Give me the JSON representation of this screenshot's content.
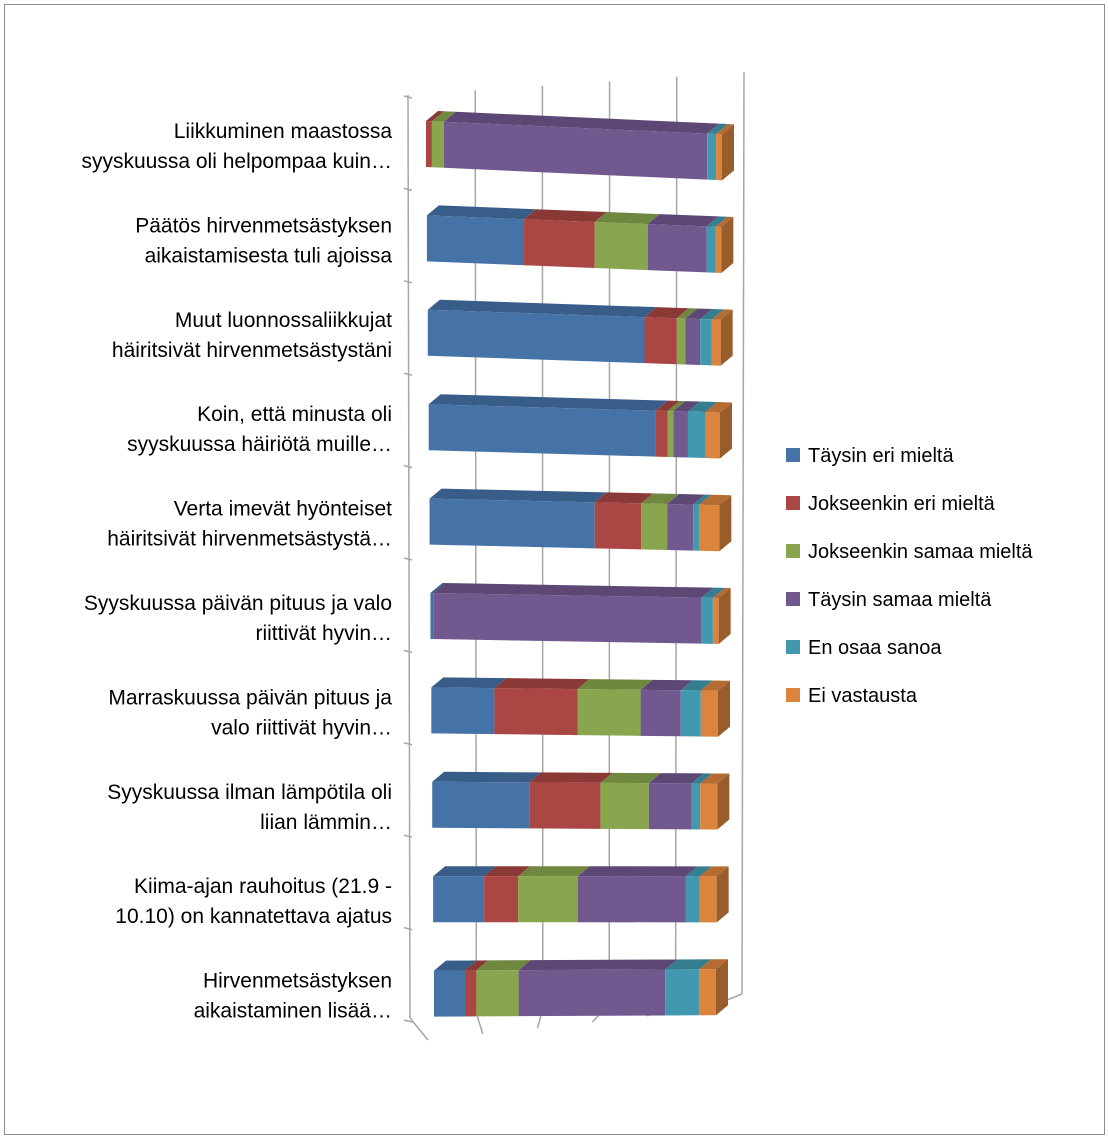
{
  "chart_data": {
    "type": "bar",
    "stacked": "percent",
    "orientation": "horizontal",
    "view": "3d",
    "categories": [
      [
        "Liikkuminen maastossa",
        "syyskuussa oli helpompaa kuin…"
      ],
      [
        "Päätös hirvenmetsästyksen",
        "aikaistamisesta tuli ajoissa"
      ],
      [
        "Muut luonnossaliikkujat",
        "häiritsivät hirvenmetsästystäni"
      ],
      [
        "Koin, että minusta oli",
        "syyskuussa häiriötä muille…"
      ],
      [
        "Verta imevät hyönteiset",
        "häiritsivät hirvenmetsästystä…"
      ],
      [
        "Syyskuussa päivän pituus ja valo",
        "riittivät hyvin…"
      ],
      [
        "Marraskuussa päivän pituus ja",
        "valo riittivät hyvin…"
      ],
      [
        "Syyskuussa ilman lämpötila oli",
        "liian lämmin…"
      ],
      [
        "Kiima-ajan rauhoitus (21.9 -",
        "10.10) on kannatettava ajatus"
      ],
      [
        "Hirvenmetsästyksen",
        "aikaistaminen lisää…"
      ]
    ],
    "series": [
      {
        "name": "Täysin eri mieltä",
        "color": "#4572A7",
        "values": [
          0,
          33,
          74,
          78,
          57,
          1,
          22,
          34,
          18,
          11
        ]
      },
      {
        "name": "Jokseenkin eri mieltä",
        "color": "#AA4643",
        "values": [
          2,
          24,
          11,
          4,
          16,
          0,
          29,
          25,
          12,
          4
        ]
      },
      {
        "name": "Jokseenkin samaa mieltä",
        "color": "#89A54E",
        "values": [
          4,
          18,
          3,
          2,
          9,
          0,
          22,
          17,
          21,
          15
        ]
      },
      {
        "name": "Täysin samaa mieltä",
        "color": "#71588F",
        "values": [
          89,
          20,
          5,
          5,
          9,
          93,
          14,
          15,
          38,
          52
        ]
      },
      {
        "name": "En osaa sanoa",
        "color": "#4198AF",
        "values": [
          3,
          3,
          4,
          6,
          2,
          4,
          7,
          3,
          5,
          12
        ]
      },
      {
        "name": "Ei vastausta",
        "color": "#DB843D",
        "values": [
          2,
          2,
          3,
          5,
          7,
          2,
          6,
          6,
          6,
          6
        ]
      }
    ],
    "xlim": [
      0,
      100
    ],
    "grid": true,
    "legend": "right",
    "title": "",
    "xlabel": "",
    "ylabel": ""
  }
}
